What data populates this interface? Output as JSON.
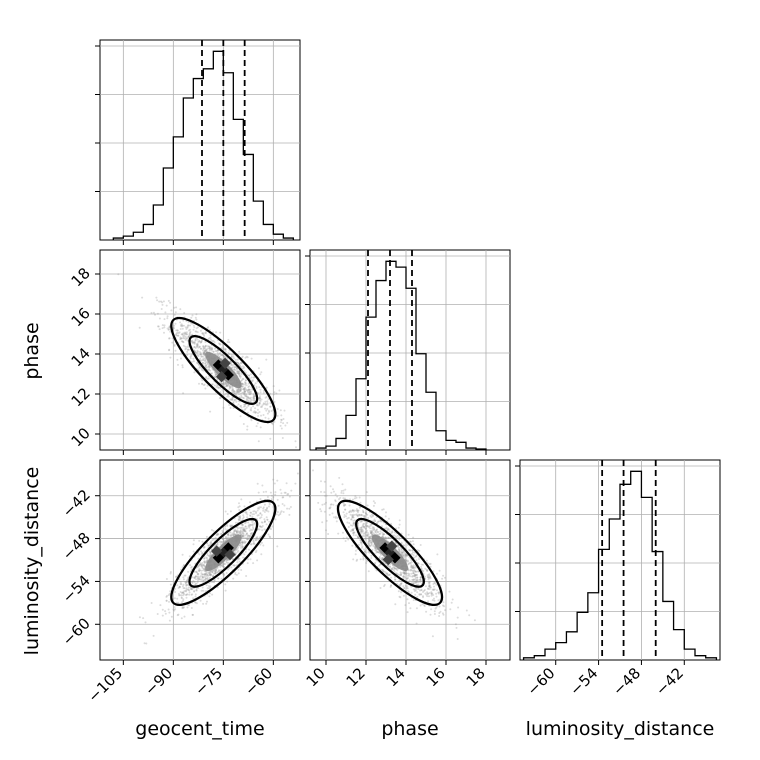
{
  "chart_data": [
    {
      "type": "histogram",
      "panel": "geocent_time",
      "xlim": [
        -112,
        -52
      ],
      "xticks": [
        -105,
        -90,
        -75,
        -60
      ],
      "bin_edges": [
        -108,
        -105,
        -102,
        -99,
        -96,
        -93,
        -90,
        -87,
        -84,
        -81,
        -78,
        -75,
        -72,
        -69,
        -66,
        -63,
        -60,
        -57,
        -54
      ],
      "counts": [
        0.01,
        0.02,
        0.04,
        0.08,
        0.18,
        0.37,
        0.53,
        0.73,
        0.83,
        0.88,
        0.97,
        0.86,
        0.62,
        0.44,
        0.2,
        0.08,
        0.03,
        0.01
      ],
      "quantiles": [
        -81.4,
        -75.0,
        -68.6
      ]
    },
    {
      "type": "histogram",
      "panel": "phase",
      "xlim": [
        9.2,
        19.2
      ],
      "xticks": [
        10,
        12,
        14,
        16,
        18
      ],
      "bin_edges": [
        9.5,
        10.0,
        10.5,
        11.0,
        11.5,
        12.0,
        12.5,
        13.0,
        13.5,
        14.0,
        14.5,
        15.0,
        15.5,
        16.0,
        16.5,
        17.0,
        17.5,
        18.0
      ],
      "counts": [
        0.01,
        0.02,
        0.06,
        0.18,
        0.37,
        0.69,
        0.88,
        0.98,
        0.95,
        0.84,
        0.5,
        0.3,
        0.1,
        0.05,
        0.04,
        0.01,
        0.005
      ],
      "quantiles": [
        12.1,
        13.2,
        14.3
      ]
    },
    {
      "type": "histogram",
      "panel": "luminosity_distance",
      "xlim": [
        -65,
        -37
      ],
      "xticks": [
        -60,
        -54,
        -48,
        -42
      ],
      "bin_edges": [
        -64.5,
        -63.0,
        -61.5,
        -60.0,
        -58.5,
        -57.0,
        -55.5,
        -54.0,
        -52.5,
        -51.0,
        -49.5,
        -48.0,
        -46.5,
        -45.0,
        -43.5,
        -42.0,
        -40.5,
        -39.0,
        -37.5
      ],
      "counts": [
        0.01,
        0.02,
        0.05,
        0.08,
        0.13,
        0.22,
        0.31,
        0.51,
        0.65,
        0.81,
        0.87,
        0.75,
        0.5,
        0.27,
        0.14,
        0.05,
        0.02,
        0.01
      ],
      "quantiles": [
        -53.5,
        -50.5,
        -46.0
      ]
    },
    {
      "type": "scatter",
      "panel": "geocent_time vs phase",
      "xlim": [
        -112,
        -52
      ],
      "ylim": [
        9.2,
        19.2
      ],
      "xticks": [
        -105,
        -90,
        -75,
        -60
      ],
      "yticks": [
        10,
        12,
        14,
        16,
        18
      ],
      "mean": [
        -75,
        13.2
      ],
      "correlation": -0.85,
      "contours_sigma": [
        1,
        2
      ]
    },
    {
      "type": "scatter",
      "panel": "geocent_time vs luminosity_distance",
      "xlim": [
        -112,
        -52
      ],
      "ylim": [
        -65,
        -37
      ],
      "xticks": [
        -105,
        -90,
        -75,
        -60
      ],
      "yticks": [
        -60,
        -54,
        -48,
        -42
      ],
      "mean": [
        -75,
        -50
      ],
      "correlation": 0.85,
      "contours_sigma": [
        1,
        2
      ]
    },
    {
      "type": "scatter",
      "panel": "phase vs luminosity_distance",
      "xlim": [
        9.2,
        19.2
      ],
      "ylim": [
        -65,
        -37
      ],
      "xticks": [
        10,
        12,
        14,
        16,
        18
      ],
      "yticks": [
        -60,
        -54,
        -48,
        -42
      ],
      "mean": [
        13.2,
        -50
      ],
      "correlation": -0.85,
      "contours_sigma": [
        1,
        2
      ]
    }
  ],
  "labels": {
    "geocent_time": "geocent_time",
    "phase": "phase",
    "luminosity_distance": "luminosity_distance"
  },
  "tick_labels": {
    "geocent_time": [
      "−105",
      "−90",
      "−75",
      "−60"
    ],
    "phase": [
      "10",
      "12",
      "14",
      "16",
      "18"
    ],
    "luminosity_distance": [
      "−60",
      "−54",
      "−48",
      "−42"
    ]
  }
}
